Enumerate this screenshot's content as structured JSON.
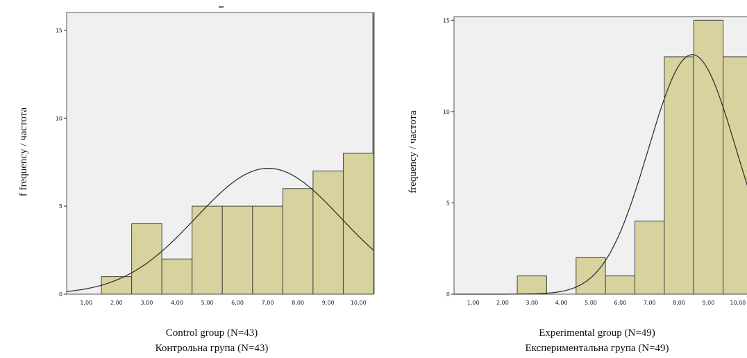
{
  "chart_data": [
    {
      "type": "bar",
      "ylabel": "f frequency / частота",
      "caption_line1": "Control group (N=43)",
      "caption_line2": "Контрольна група (N=43)",
      "x_ticks": [
        "1,00",
        "2,00",
        "3,00",
        "4,00",
        "5,00",
        "6,00",
        "7,00",
        "8,00",
        "9,00",
        "10,00"
      ],
      "y_ticks": [
        "0",
        "5",
        "10",
        "15"
      ],
      "xlim": [
        0.35,
        10.5
      ],
      "ylim": [
        0,
        16
      ],
      "bins": [
        2,
        3,
        4,
        5,
        6,
        7,
        8,
        9,
        10
      ],
      "values": [
        1,
        4,
        2,
        5,
        5,
        5,
        6,
        7,
        8
      ],
      "normal_curve": {
        "mean": 7.02,
        "sd": 2.4
      },
      "bar_color": "#d8d29e",
      "plot_bg": "#f0f0f0"
    },
    {
      "type": "bar",
      "ylabel": "frequency / частота",
      "caption_line1": "Experimental group (N=49)",
      "caption_line2": "Експериментальна група (N=49)",
      "x_ticks": [
        "1,00",
        "2,00",
        "3,00",
        "4,00",
        "5,00",
        "6,00",
        "7,00",
        "8,00",
        "9,00",
        "10,00"
      ],
      "y_ticks": [
        "0",
        "5",
        "10",
        "15"
      ],
      "xlim": [
        0.35,
        10.5
      ],
      "ylim": [
        0,
        15.2
      ],
      "bins": [
        3,
        5,
        6,
        7,
        8,
        9,
        10
      ],
      "values": [
        1,
        2,
        1,
        4,
        13,
        15,
        13
      ],
      "normal_curve": {
        "mean": 8.45,
        "sd": 1.49
      },
      "bar_color": "#d8d29e",
      "plot_bg": "#f0f0f0"
    }
  ]
}
